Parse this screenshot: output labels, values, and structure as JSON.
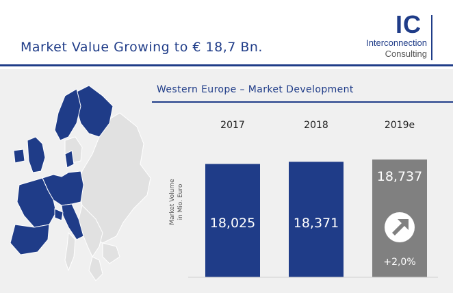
{
  "header": {
    "title": "Market Value Growing to € 18,7 Bn."
  },
  "logo": {
    "mark": "IC",
    "line1": "Interconnection",
    "line2": "Consulting"
  },
  "map": {
    "icon": "europe-map-icon",
    "highlight_color": "#1f3c88",
    "base_color": "#e1e1e1"
  },
  "chart_data": {
    "type": "bar",
    "title": "Western Europe – Market Development",
    "ylabel_lines": [
      "Market Volume",
      "in Mio. Euro"
    ],
    "categories": [
      "2017",
      "2018",
      "2019e"
    ],
    "values": [
      18025,
      18371,
      18737
    ],
    "value_labels": [
      "18,025",
      "18,371",
      "18,737"
    ],
    "bar_colors": [
      "#1f3c88",
      "#1f3c88",
      "#808080"
    ],
    "growth_label": "+2,0%",
    "growth_icon": "arrow-up-right-icon"
  }
}
